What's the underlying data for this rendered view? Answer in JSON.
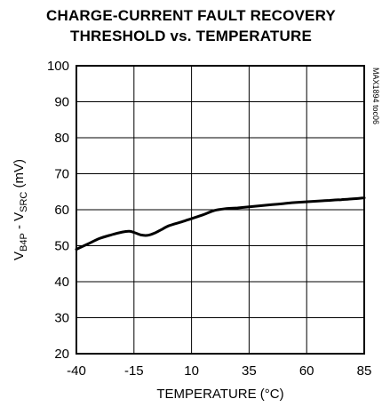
{
  "chart_data": {
    "type": "line",
    "title_line1": "CHARGE-CURRENT FAULT RECOVERY",
    "title_line2": "THRESHOLD vs. TEMPERATURE",
    "xlabel": "TEMPERATURE (°C)",
    "ylabel": {
      "p1": "V",
      "sub1": "B4P",
      "p2": " - V",
      "sub2": "SRC",
      "p3": " (mV)"
    },
    "side_code": "MAX1894 toc06",
    "xlim": [
      -40,
      85
    ],
    "ylim": [
      20,
      100
    ],
    "xticks": [
      -40,
      -15,
      10,
      35,
      60,
      85
    ],
    "xtick_labels": [
      "-40",
      "-15",
      "10",
      "35",
      "60",
      "85"
    ],
    "yticks": [
      20,
      30,
      40,
      50,
      60,
      70,
      80,
      90,
      100
    ],
    "ytick_labels": [
      "20",
      "30",
      "40",
      "50",
      "60",
      "70",
      "80",
      "90",
      "100"
    ],
    "grid": true,
    "series": [
      {
        "x": [
          -40,
          -35,
          -30,
          -25,
          -20,
          -17,
          -15,
          -12,
          -9,
          -6,
          -3,
          0,
          5,
          10,
          15,
          20,
          25,
          30,
          35,
          40,
          45,
          50,
          55,
          60,
          65,
          70,
          75,
          80,
          85
        ],
        "y": [
          49.0,
          50.5,
          52.0,
          53.0,
          53.8,
          54.0,
          53.7,
          53.0,
          52.9,
          53.5,
          54.5,
          55.5,
          56.5,
          57.5,
          58.6,
          59.8,
          60.3,
          60.5,
          60.8,
          61.1,
          61.4,
          61.7,
          62.0,
          62.2,
          62.4,
          62.6,
          62.8,
          63.0,
          63.3
        ]
      }
    ]
  }
}
